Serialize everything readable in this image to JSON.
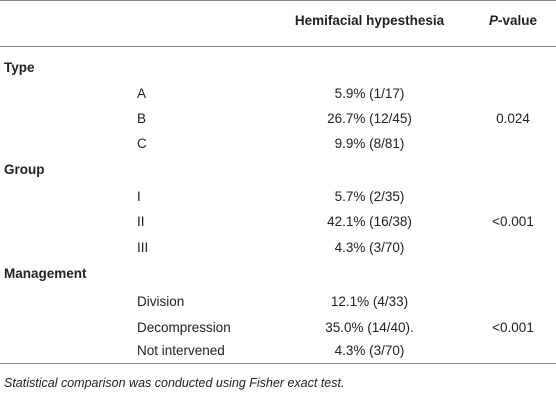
{
  "header": {
    "col_hypesthesia": "Hemifacial hypesthesia",
    "col_p_italic": "P",
    "col_p_rest": "-value"
  },
  "sections": [
    {
      "title": "Type",
      "rows": [
        {
          "label": "A",
          "value": "5.9% (1/17)"
        },
        {
          "label": "B",
          "value": "26.7% (12/45)",
          "p": "0.024"
        },
        {
          "label": "C",
          "value": "9.9% (8/81)"
        }
      ]
    },
    {
      "title": "Group",
      "rows": [
        {
          "label": "I",
          "value": "5.7% (2/35)"
        },
        {
          "label": "II",
          "value": "42.1% (16/38)",
          "p": "<0.001"
        },
        {
          "label": "III",
          "value": "4.3% (3/70)"
        }
      ]
    },
    {
      "title": "Management",
      "rows": [
        {
          "label": "Division",
          "value": "12.1% (4/33)"
        },
        {
          "label": "Decompression",
          "value": "35.0% (14/40).",
          "p": "<0.001"
        },
        {
          "label": "Not intervened",
          "value": "4.3% (3/70)"
        }
      ]
    }
  ],
  "footnote": "Statistical comparison was conducted using Fisher exact test."
}
